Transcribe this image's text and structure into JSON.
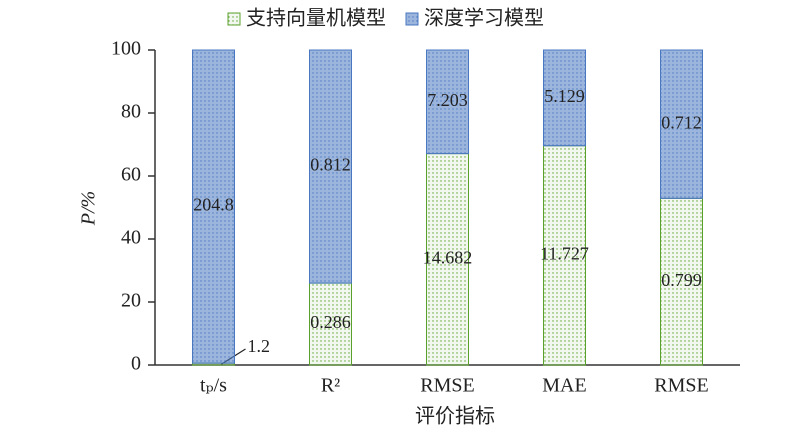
{
  "chart_data": {
    "type": "stacked_bar",
    "categories": [
      "tₚ/s",
      "R²",
      "RMSE",
      "MAE",
      "RMSE"
    ],
    "series": [
      {
        "name": "支持向量机模型",
        "color": "#5aa02c",
        "values": [
          0.58,
          26.0,
          67.1,
          69.6,
          52.9
        ],
        "labels": [
          "1.2",
          "0.286",
          "14.682",
          "11.727",
          "0.799"
        ]
      },
      {
        "name": "深度学习模型",
        "color": "#4a78c0",
        "values": [
          99.42,
          74.0,
          32.9,
          30.4,
          47.1
        ],
        "labels": [
          "204.8",
          "0.812",
          "7.203",
          "5.129",
          "0.712"
        ]
      }
    ],
    "y_label": "P/%",
    "x_label": "评价指标",
    "ylim": [
      0,
      100
    ],
    "yticks": [
      0,
      20,
      40,
      60,
      80,
      100
    ],
    "legend": "top"
  }
}
